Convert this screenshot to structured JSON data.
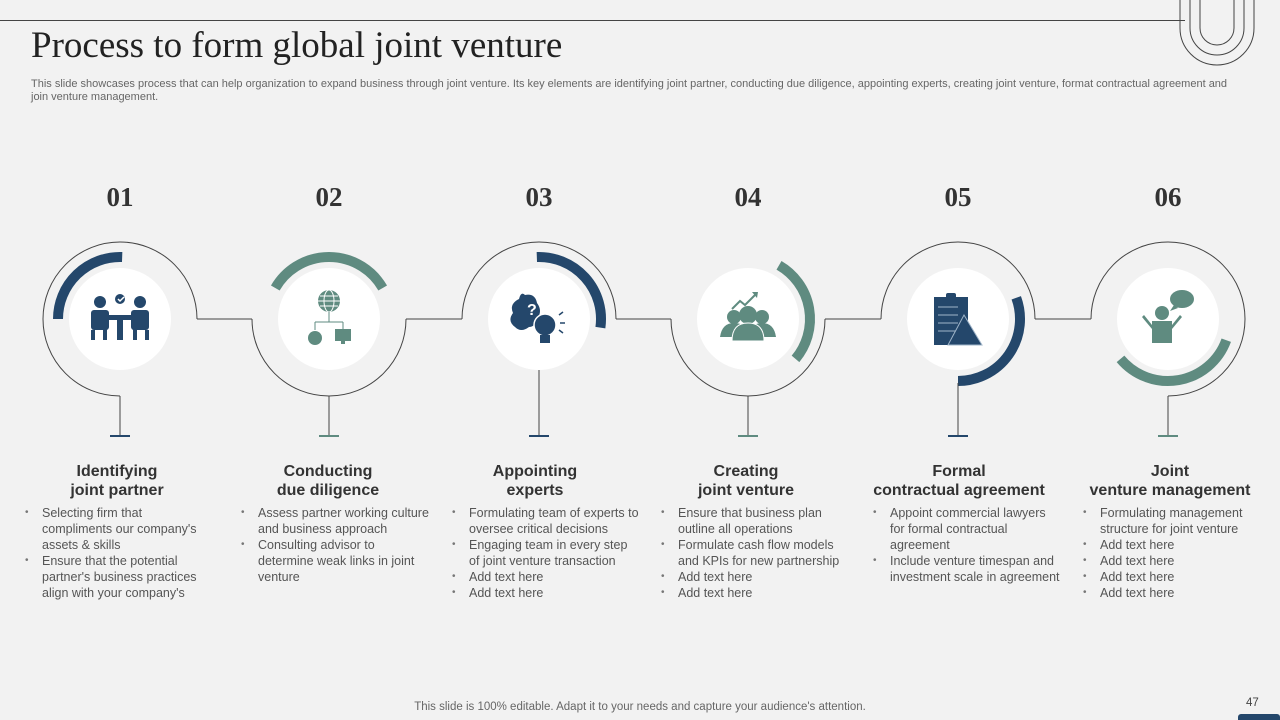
{
  "title": "Process to form global joint venture",
  "description": "This slide showcases process that can help organization to expand business through joint venture. Its key elements are identifying joint partner, conducting due diligence, appointing experts, creating joint venture, format contractual agreement and join venture management.",
  "colors": {
    "navy": "#24476b",
    "teal": "#5f8b80",
    "line": "#444444",
    "background": "#f2f2f2"
  },
  "steps": [
    {
      "number": "01",
      "heading_line1": "Identifying",
      "heading_line2": "joint partner",
      "icon": "meeting-icon",
      "accent": "navy",
      "bullets": [
        "Selecting firm that compliments our company's assets & skills",
        "Ensure that the potential partner's business practices align with your company's"
      ]
    },
    {
      "number": "02",
      "heading_line1": "Conducting",
      "heading_line2": "due diligence",
      "icon": "network-globe-icon",
      "accent": "teal",
      "bullets": [
        "Assess partner working culture and business approach",
        "Consulting advisor  to determine  weak links in joint venture"
      ]
    },
    {
      "number": "03",
      "heading_line1": "Appointing",
      "heading_line2": "experts",
      "icon": "brain-bulb-icon",
      "accent": "navy",
      "bullets": [
        "Formulating team of experts to oversee  critical decisions",
        "Engaging team in every step of joint venture transaction",
        "Add text here",
        "Add text here"
      ]
    },
    {
      "number": "04",
      "heading_line1": "Creating",
      "heading_line2": "joint venture",
      "icon": "team-growth-icon",
      "accent": "teal",
      "bullets": [
        "Ensure that business plan outline all operations",
        "Formulate cash flow models and KPIs for new partnership",
        "Add text here",
        "Add text here"
      ]
    },
    {
      "number": "05",
      "heading_line1": "Formal",
      "heading_line2": "contractual agreement",
      "icon": "clipboard-icon",
      "accent": "navy",
      "bullets": [
        "Appoint commercial lawyers for formal contractual agreement",
        "Include venture  timespan and investment scale in agreement"
      ]
    },
    {
      "number": "06",
      "heading_line1": "Joint",
      "heading_line2": "venture management",
      "icon": "speaking-person-icon",
      "accent": "teal",
      "bullets": [
        "Formulating management structure for joint venture",
        "Add text here",
        "Add text here",
        "Add text here",
        "Add text here"
      ]
    }
  ],
  "footer": "This slide is 100% editable. Adapt it to your needs and capture your audience's attention.",
  "page_number": "47"
}
